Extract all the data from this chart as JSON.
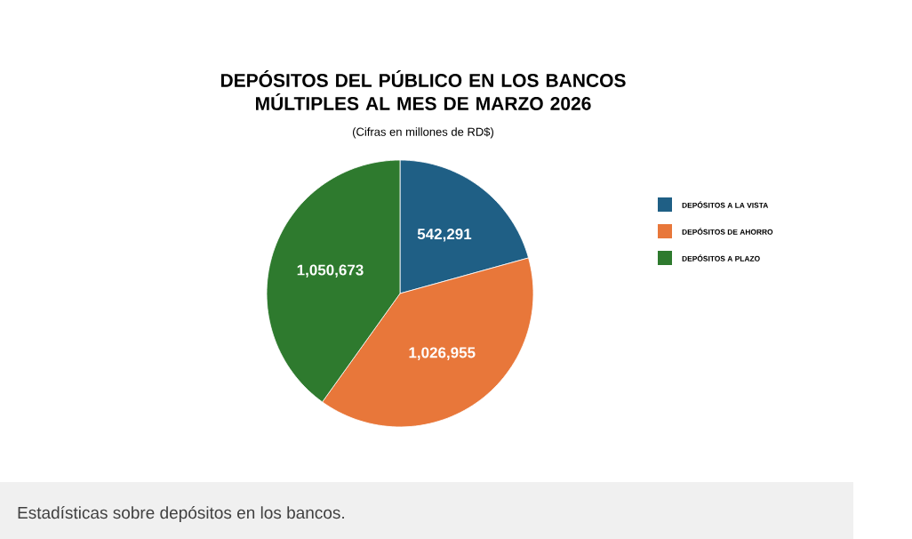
{
  "chart_data": {
    "type": "pie",
    "title": "DEPÓSITOS DEL PÚBLICO EN LOS BANCOS MÚLTIPLES AL MES DE MARZO 2026",
    "subtitle": "(Cifras en millones de RD$)",
    "categories": [
      "DEPÓSITOS A LA VISTA",
      "DEPÓSITOS DE AHORRO",
      "DEPÓSITOS A PLAZO"
    ],
    "values": [
      542291,
      1026955,
      1050673
    ],
    "colors": [
      "#1f5f85",
      "#e8773a",
      "#2e7a2e"
    ],
    "value_labels": [
      "542,291",
      "1,026,955",
      "1,050,673"
    ],
    "legend": "right",
    "annotations": [
      "Estadísticas sobre depósitos en los bancos."
    ]
  }
}
